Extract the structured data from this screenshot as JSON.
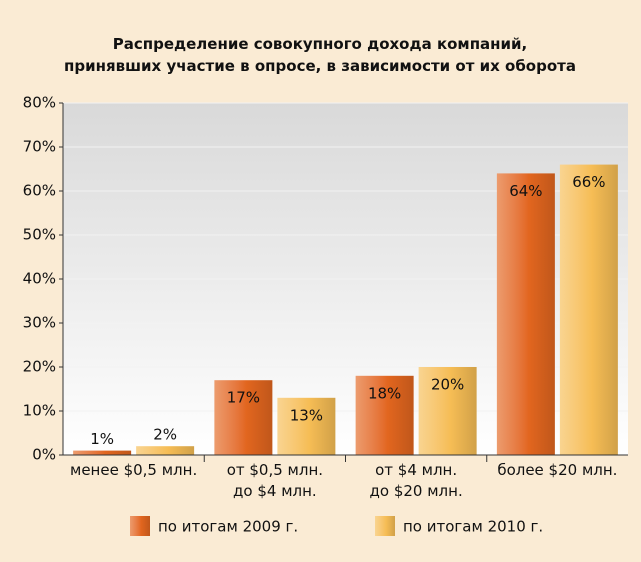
{
  "chart_data": {
    "type": "bar",
    "title": "Распределение совокупного дохода компаний,\nпринявших участие в опросе, в зависимости от их оборота",
    "categories": [
      "менее $0,5 млн.",
      "от $0,5 млн.\nдо $4 млн.",
      "от $4 млн.\nдо $20 млн.",
      "более $20 млн."
    ],
    "series": [
      {
        "name": "по итогам 2009 г.",
        "color": "#e2661f",
        "values": [
          1,
          17,
          18,
          64
        ],
        "value_labels": [
          "1%",
          "17%",
          "18%",
          "64%"
        ]
      },
      {
        "name": "по итогам 2010 г.",
        "color": "#f6bd55",
        "values": [
          2,
          13,
          20,
          66
        ],
        "value_labels": [
          "2%",
          "13%",
          "20%",
          "66%"
        ]
      }
    ],
    "ylim": [
      0,
      80
    ],
    "yticks": [
      {
        "value": 0,
        "label": "0%"
      },
      {
        "value": 10,
        "label": "10%"
      },
      {
        "value": 20,
        "label": "20%"
      },
      {
        "value": 30,
        "label": "30%"
      },
      {
        "value": 40,
        "label": "40%"
      },
      {
        "value": 50,
        "label": "50%"
      },
      {
        "value": 60,
        "label": "60%"
      },
      {
        "value": 70,
        "label": "70%"
      },
      {
        "value": 80,
        "label": "80%"
      }
    ],
    "grid": true,
    "legend": "bottom"
  }
}
